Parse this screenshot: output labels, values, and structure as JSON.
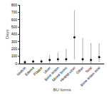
{
  "chart_data": {
    "type": "range_dot",
    "x_label": "BU forms",
    "y_label": "Days",
    "categories": [
      "Nodule",
      "Edema",
      "Plaque",
      "Ulcer",
      "Bone lesion",
      "Mixed forms",
      "Healed ulcer",
      "Other",
      "Total",
      "Bone lesion total"
    ],
    "values": [
      20,
      30,
      30,
      50,
      60,
      60,
      360,
      60,
      50,
      90
    ],
    "lower": [
      0,
      10,
      10,
      10,
      20,
      20,
      60,
      10,
      0,
      20
    ],
    "upper": [
      50,
      50,
      60,
      120,
      150,
      200,
      730,
      350,
      280,
      280
    ],
    "color": "#000000",
    "range_color": "#aaaaaa",
    "ylim": [
      0,
      800
    ],
    "yticks": [
      0,
      100,
      200,
      300,
      400,
      500,
      600,
      700,
      800
    ],
    "grid": false
  }
}
